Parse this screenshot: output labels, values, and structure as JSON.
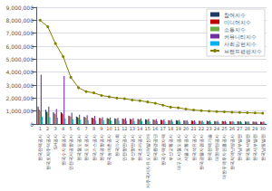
{
  "chart_data": {
    "type": "bar",
    "categories": [
      "한국전력공사",
      "한국토지주택공사",
      "SH공사",
      "한국수자원공사",
      "인천국제공항공사",
      "한국철도공사",
      "한국도로공사",
      "한국가스공사",
      "한국공항공사",
      "한국농어촌공사",
      "한국마사회",
      "인천항만공사",
      "부산항만공사",
      "한국조폐공사",
      "제주국제자유도시개발센터",
      "한국환경공단",
      "한국수력원자력",
      "부산교통공사",
      "대구도시철도공사",
      "서울교통공사",
      "한국석유공사",
      "한국광물자원공사",
      "한국전력기술",
      "대한석탄공사",
      "대한무역투자진흥공사",
      "한국지역난방공사",
      "한국남부발전",
      "한국동서발전",
      "한국서부발전",
      "한국남동발전"
    ],
    "xticks": [
      1,
      2,
      3,
      4,
      5,
      6,
      7,
      8,
      9,
      10,
      11,
      12,
      13,
      14,
      15,
      16,
      17,
      18,
      19,
      20,
      21,
      22,
      23,
      24,
      25,
      26,
      27,
      28,
      29,
      30
    ],
    "series": [
      {
        "name": "참여지수",
        "type": "bar",
        "color": "#1f3864",
        "values": [
          1350000,
          1100000,
          900000,
          900000,
          650000,
          580000,
          560000,
          480000,
          470000,
          450000,
          430000,
          420000,
          400000,
          390000,
          370000,
          350000,
          330000,
          300000,
          290000,
          280000,
          265000,
          255000,
          245000,
          235000,
          225000,
          215000,
          205000,
          195000,
          185000,
          175000
        ]
      },
      {
        "name": "미디어지수",
        "type": "bar",
        "color": "#c00000",
        "values": [
          1100000,
          950000,
          800000,
          820000,
          600000,
          520000,
          500000,
          460000,
          440000,
          420000,
          400000,
          390000,
          370000,
          360000,
          340000,
          320000,
          295000,
          275000,
          265000,
          255000,
          242000,
          232000,
          222000,
          215000,
          205000,
          195000,
          188000,
          178000,
          172000,
          165000
        ]
      },
      {
        "name": "소통지수",
        "type": "bar",
        "color": "#70ad47",
        "values": [
          1000000,
          900000,
          750000,
          750000,
          550000,
          480000,
          460000,
          420000,
          400000,
          385000,
          365000,
          355000,
          338000,
          328000,
          310000,
          292000,
          270000,
          252000,
          242000,
          232000,
          220000,
          210000,
          202000,
          194000,
          185000,
          178000,
          170000,
          163000,
          157000,
          152000
        ]
      },
      {
        "name": "커뮤니티지수",
        "type": "bar",
        "color": "#7030a0",
        "values": [
          3800000,
          1350000,
          1150000,
          3700000,
          870000,
          720000,
          680000,
          630000,
          530000,
          505000,
          475000,
          465000,
          445000,
          428000,
          408000,
          388000,
          358000,
          330000,
          320000,
          300000,
          280000,
          270000,
          260000,
          250000,
          238000,
          228000,
          218000,
          210000,
          200000,
          192000
        ]
      },
      {
        "name": "사회공헌지수",
        "type": "bar",
        "color": "#00b0f0",
        "values": [
          580000,
          530000,
          480000,
          430000,
          360000,
          325000,
          305000,
          285000,
          275000,
          265000,
          255000,
          245000,
          235000,
          225000,
          215000,
          206000,
          193000,
          182000,
          175000,
          168000,
          160000,
          153000,
          147000,
          142000,
          137000,
          132000,
          127000,
          122000,
          118000,
          113000
        ]
      },
      {
        "name": "브랜드평판지수",
        "type": "line",
        "color": "#808000",
        "marker": "circle",
        "values": [
          8000000,
          7500000,
          6200000,
          5200000,
          3600000,
          2800000,
          2500000,
          2400000,
          2200000,
          2100000,
          2000000,
          1950000,
          1850000,
          1800000,
          1700000,
          1600000,
          1450000,
          1300000,
          1250000,
          1150000,
          1080000,
          1030000,
          990000,
          960000,
          940000,
          910000,
          890000,
          870000,
          850000,
          830000
        ]
      }
    ],
    "ylim": [
      0,
      9000000
    ],
    "yticks": [
      0,
      {
        "value": 1000000,
        "label": "1,000,000"
      },
      {
        "value": 2000000,
        "label": "2,000,000"
      },
      {
        "value": 3000000,
        "label": "3,000,000"
      },
      {
        "value": 4000000,
        "label": "4,000,000"
      },
      {
        "value": 5000000,
        "label": "5,000,000"
      },
      {
        "value": 6000000,
        "label": "6,000,000"
      },
      {
        "value": 7000000,
        "label": "7,000,000"
      },
      {
        "value": 8000000,
        "label": "8,000,000"
      },
      {
        "value": 9000000,
        "label": "9,000,000"
      }
    ],
    "grid": true,
    "legend": "upper right"
  }
}
